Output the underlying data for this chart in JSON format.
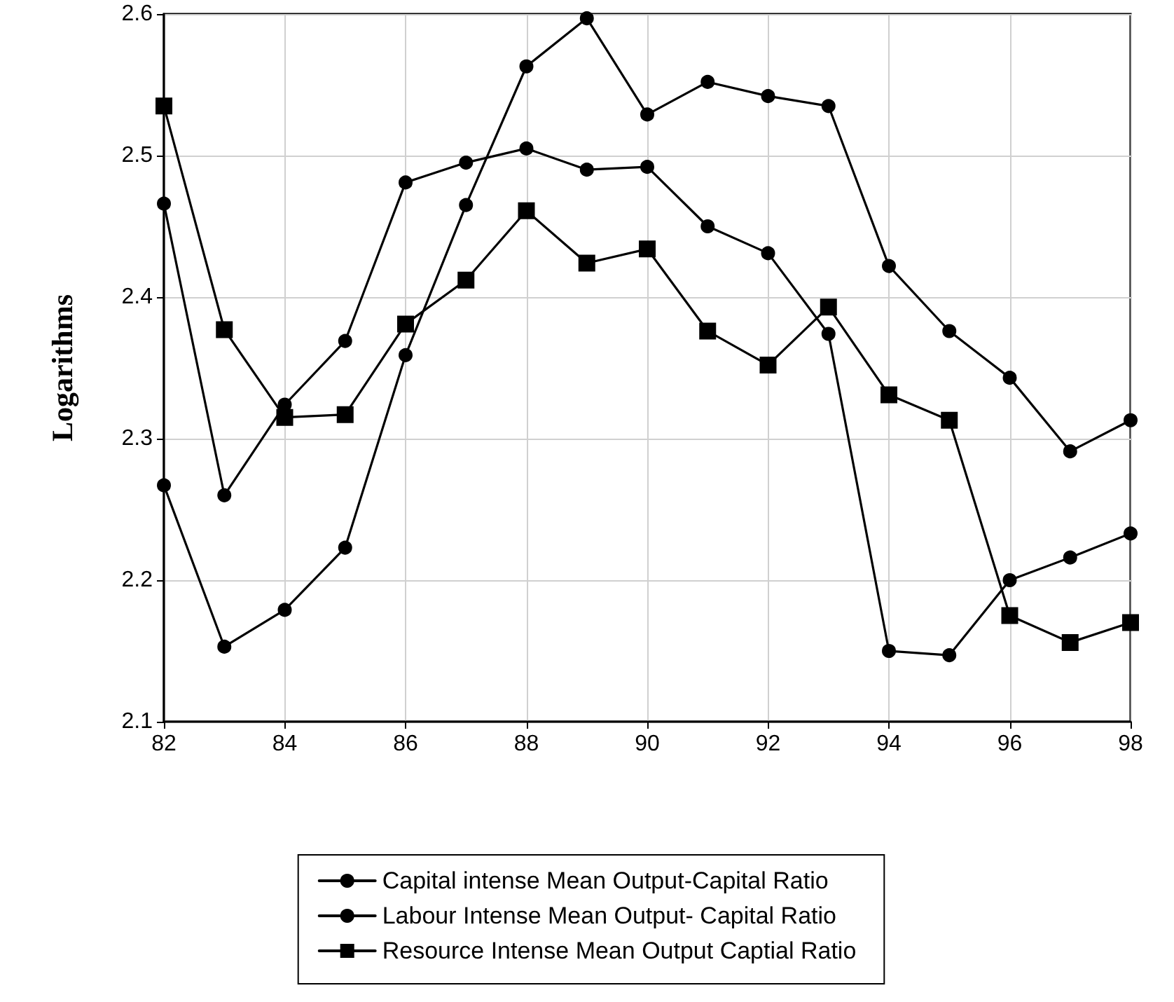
{
  "chart_data": {
    "type": "line",
    "ylabel": "Logarithms",
    "x": [
      82,
      83,
      84,
      85,
      86,
      87,
      88,
      89,
      90,
      91,
      92,
      93,
      94,
      95,
      96,
      97,
      98
    ],
    "series": [
      {
        "name": "Capital intense Mean Output-Capital Ratio",
        "color": "#000000",
        "marker": "circle",
        "values": [
          2.267,
          2.153,
          2.179,
          2.223,
          2.359,
          2.465,
          2.563,
          2.597,
          2.529,
          2.552,
          2.542,
          2.535,
          2.422,
          2.376,
          2.343,
          2.291,
          2.313
        ]
      },
      {
        "name": "Labour Intense Mean Output- Capital Ratio",
        "color": "#000000",
        "marker": "circle",
        "values": [
          2.466,
          2.26,
          2.324,
          2.369,
          2.481,
          2.495,
          2.505,
          2.49,
          2.492,
          2.45,
          2.431,
          2.374,
          2.15,
          2.147,
          2.2,
          2.216,
          2.233
        ]
      },
      {
        "name": "Resource Intense Mean Output Captial Ratio",
        "color": "#000000",
        "marker": "square",
        "values": [
          2.535,
          2.377,
          2.315,
          2.317,
          2.381,
          2.412,
          2.461,
          2.424,
          2.434,
          2.376,
          2.352,
          2.393,
          2.331,
          2.313,
          2.175,
          2.156,
          2.17
        ]
      }
    ],
    "xlim": [
      82,
      98
    ],
    "xticks": [
      82,
      84,
      86,
      88,
      90,
      92,
      94,
      96,
      98
    ],
    "ylim": [
      2.1,
      2.6
    ],
    "yticks": [
      2.1,
      2.2,
      2.3,
      2.4,
      2.5,
      2.6
    ],
    "grid": true,
    "legend": "bottom",
    "line_style": "solid"
  }
}
